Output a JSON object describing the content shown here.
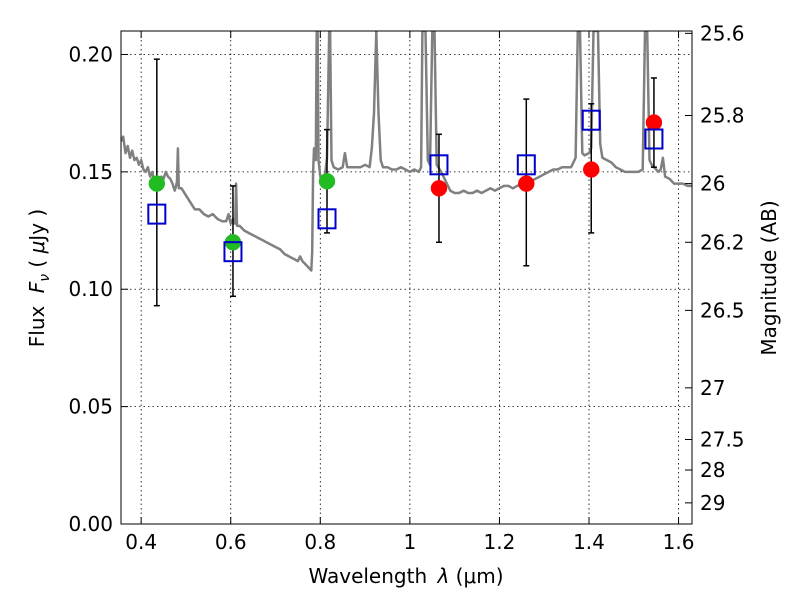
{
  "chart_data": {
    "type": "scatter",
    "title": "",
    "xlabel": "Wavelength  λ (μm)",
    "ylabel": "Flux  F_ν  ( μJy )",
    "ylabel_parts": {
      "prefix": "Flux ",
      "symbol": "F",
      "sub": "ν",
      "unit_open": " ( ",
      "mu": "μ",
      "unit": "Jy )"
    },
    "xlabel_parts": {
      "prefix": "Wavelength ",
      "symbol": "λ",
      "unit": " (μm)"
    },
    "y2label": "Magnitude (AB)",
    "xlim": [
      0.355,
      1.63
    ],
    "ylim": [
      0.0,
      0.21
    ],
    "grid": true,
    "x_ticks": [
      0.4,
      0.6,
      0.8,
      1.0,
      1.2,
      1.4,
      1.6
    ],
    "x_tick_labels": [
      "0.4",
      "0.6",
      "0.8",
      "1",
      "1.2",
      "1.4",
      "1.6"
    ],
    "y_ticks": [
      0.0,
      0.05,
      0.1,
      0.15,
      0.2
    ],
    "y_tick_labels": [
      "0.00",
      "0.05",
      "0.10",
      "0.15",
      "0.20"
    ],
    "y2_ticks": [
      {
        "label": "25.6",
        "flux": 0.209
      },
      {
        "label": "25.8",
        "flux": 0.174
      },
      {
        "label": "26",
        "flux": 0.145
      },
      {
        "label": "26.2",
        "flux": 0.12
      },
      {
        "label": "26.5",
        "flux": 0.091
      },
      {
        "label": "27",
        "flux": 0.058
      },
      {
        "label": "27.5",
        "flux": 0.036
      },
      {
        "label": "28",
        "flux": 0.023
      },
      {
        "label": "29",
        "flux": 0.009
      }
    ],
    "series": [
      {
        "kind": "model_sed",
        "color": "#808080",
        "points": [
          [
            0.355,
            0.163
          ],
          [
            0.36,
            0.165
          ],
          [
            0.365,
            0.158
          ],
          [
            0.37,
            0.161
          ],
          [
            0.375,
            0.156
          ],
          [
            0.38,
            0.159
          ],
          [
            0.385,
            0.155
          ],
          [
            0.39,
            0.156
          ],
          [
            0.395,
            0.153
          ],
          [
            0.4,
            0.155
          ],
          [
            0.405,
            0.151
          ],
          [
            0.41,
            0.15
          ],
          [
            0.415,
            0.152
          ],
          [
            0.42,
            0.148
          ],
          [
            0.425,
            0.15
          ],
          [
            0.43,
            0.145
          ],
          [
            0.435,
            0.146
          ],
          [
            0.44,
            0.145
          ],
          [
            0.445,
            0.148
          ],
          [
            0.45,
            0.147
          ],
          [
            0.455,
            0.15
          ],
          [
            0.46,
            0.148
          ],
          [
            0.465,
            0.147
          ],
          [
            0.47,
            0.145
          ],
          [
            0.475,
            0.142
          ],
          [
            0.478,
            0.144
          ],
          [
            0.48,
            0.146
          ],
          [
            0.482,
            0.16
          ],
          [
            0.484,
            0.143
          ],
          [
            0.49,
            0.143
          ],
          [
            0.5,
            0.14
          ],
          [
            0.51,
            0.137
          ],
          [
            0.52,
            0.134
          ],
          [
            0.53,
            0.134
          ],
          [
            0.54,
            0.132
          ],
          [
            0.55,
            0.131
          ],
          [
            0.56,
            0.132
          ],
          [
            0.57,
            0.13
          ],
          [
            0.58,
            0.129
          ],
          [
            0.59,
            0.129
          ],
          [
            0.595,
            0.132
          ],
          [
            0.6,
            0.128
          ],
          [
            0.605,
            0.13
          ],
          [
            0.608,
            0.128
          ],
          [
            0.61,
            0.128
          ],
          [
            0.612,
            0.145
          ],
          [
            0.614,
            0.127
          ],
          [
            0.62,
            0.127
          ],
          [
            0.63,
            0.125
          ],
          [
            0.64,
            0.124
          ],
          [
            0.65,
            0.123
          ],
          [
            0.66,
            0.122
          ],
          [
            0.67,
            0.121
          ],
          [
            0.68,
            0.12
          ],
          [
            0.69,
            0.119
          ],
          [
            0.7,
            0.118
          ],
          [
            0.71,
            0.117
          ],
          [
            0.72,
            0.115
          ],
          [
            0.73,
            0.114
          ],
          [
            0.74,
            0.113
          ],
          [
            0.75,
            0.112
          ],
          [
            0.755,
            0.114
          ],
          [
            0.76,
            0.112
          ],
          [
            0.765,
            0.111
          ],
          [
            0.77,
            0.11
          ],
          [
            0.775,
            0.109
          ],
          [
            0.78,
            0.108
          ],
          [
            0.782,
            0.116
          ],
          [
            0.784,
            0.15
          ],
          [
            0.786,
            0.16
          ],
          [
            0.79,
            0.155
          ],
          [
            0.792,
            0.21
          ],
          [
            0.794,
            0.21
          ],
          [
            0.796,
            0.155
          ],
          [
            0.8,
            0.148
          ],
          [
            0.81,
            0.148
          ],
          [
            0.815,
            0.156
          ],
          [
            0.82,
            0.21
          ],
          [
            0.822,
            0.21
          ],
          [
            0.825,
            0.155
          ],
          [
            0.83,
            0.152
          ],
          [
            0.84,
            0.151
          ],
          [
            0.85,
            0.152
          ],
          [
            0.855,
            0.158
          ],
          [
            0.86,
            0.152
          ],
          [
            0.87,
            0.152
          ],
          [
            0.88,
            0.152
          ],
          [
            0.89,
            0.152
          ],
          [
            0.9,
            0.153
          ],
          [
            0.91,
            0.152
          ],
          [
            0.915,
            0.16
          ],
          [
            0.92,
            0.175
          ],
          [
            0.925,
            0.21
          ],
          [
            0.93,
            0.175
          ],
          [
            0.935,
            0.155
          ],
          [
            0.94,
            0.152
          ],
          [
            0.95,
            0.152
          ],
          [
            0.96,
            0.151
          ],
          [
            0.97,
            0.151
          ],
          [
            0.98,
            0.152
          ],
          [
            0.99,
            0.151
          ],
          [
            1.0,
            0.15
          ],
          [
            1.01,
            0.151
          ],
          [
            1.02,
            0.15
          ],
          [
            1.025,
            0.152
          ],
          [
            1.028,
            0.21
          ],
          [
            1.032,
            0.21
          ],
          [
            1.035,
            0.21
          ],
          [
            1.04,
            0.155
          ],
          [
            1.045,
            0.153
          ],
          [
            1.05,
            0.21
          ],
          [
            1.055,
            0.21
          ],
          [
            1.06,
            0.153
          ],
          [
            1.07,
            0.15
          ],
          [
            1.08,
            0.146
          ],
          [
            1.09,
            0.142
          ],
          [
            1.1,
            0.141
          ],
          [
            1.11,
            0.141
          ],
          [
            1.12,
            0.142
          ],
          [
            1.13,
            0.141
          ],
          [
            1.14,
            0.141
          ],
          [
            1.15,
            0.142
          ],
          [
            1.16,
            0.141
          ],
          [
            1.17,
            0.142
          ],
          [
            1.18,
            0.143
          ],
          [
            1.19,
            0.142
          ],
          [
            1.2,
            0.143
          ],
          [
            1.21,
            0.144
          ],
          [
            1.22,
            0.144
          ],
          [
            1.23,
            0.143
          ],
          [
            1.24,
            0.144
          ],
          [
            1.25,
            0.145
          ],
          [
            1.26,
            0.147
          ],
          [
            1.27,
            0.146
          ],
          [
            1.28,
            0.147
          ],
          [
            1.29,
            0.148
          ],
          [
            1.3,
            0.149
          ],
          [
            1.31,
            0.15
          ],
          [
            1.32,
            0.151
          ],
          [
            1.33,
            0.151
          ],
          [
            1.34,
            0.152
          ],
          [
            1.35,
            0.152
          ],
          [
            1.36,
            0.152
          ],
          [
            1.37,
            0.156
          ],
          [
            1.375,
            0.21
          ],
          [
            1.38,
            0.21
          ],
          [
            1.385,
            0.158
          ],
          [
            1.39,
            0.157
          ],
          [
            1.4,
            0.158
          ],
          [
            1.405,
            0.16
          ],
          [
            1.41,
            0.21
          ],
          [
            1.415,
            0.21
          ],
          [
            1.42,
            0.21
          ],
          [
            1.425,
            0.162
          ],
          [
            1.43,
            0.156
          ],
          [
            1.44,
            0.155
          ],
          [
            1.45,
            0.154
          ],
          [
            1.46,
            0.152
          ],
          [
            1.47,
            0.151
          ],
          [
            1.48,
            0.15
          ],
          [
            1.49,
            0.15
          ],
          [
            1.5,
            0.15
          ],
          [
            1.51,
            0.15
          ],
          [
            1.52,
            0.151
          ],
          [
            1.525,
            0.21
          ],
          [
            1.53,
            0.21
          ],
          [
            1.535,
            0.155
          ],
          [
            1.54,
            0.153
          ],
          [
            1.545,
            0.152
          ],
          [
            1.55,
            0.151
          ],
          [
            1.555,
            0.15
          ],
          [
            1.56,
            0.151
          ],
          [
            1.565,
            0.156
          ],
          [
            1.57,
            0.148
          ],
          [
            1.58,
            0.147
          ],
          [
            1.59,
            0.145
          ],
          [
            1.6,
            0.145
          ],
          [
            1.61,
            0.145
          ],
          [
            1.62,
            0.144
          ],
          [
            1.63,
            0.144
          ]
        ]
      },
      {
        "kind": "observed",
        "color": "#22bb22",
        "marker": "circle",
        "points": [
          {
            "x": 0.435,
            "y": 0.145
          },
          {
            "x": 0.605,
            "y": 0.12
          },
          {
            "x": 0.815,
            "y": 0.146
          }
        ]
      },
      {
        "kind": "observed",
        "color": "#ff0000",
        "marker": "circle",
        "points": [
          {
            "x": 1.065,
            "y": 0.143
          },
          {
            "x": 1.26,
            "y": 0.145
          },
          {
            "x": 1.405,
            "y": 0.151
          },
          {
            "x": 1.545,
            "y": 0.171
          }
        ]
      },
      {
        "kind": "model_photometry",
        "color": "#0000cc",
        "marker": "open-square",
        "points": [
          {
            "x": 0.435,
            "y": 0.132
          },
          {
            "x": 0.605,
            "y": 0.116
          },
          {
            "x": 0.815,
            "y": 0.13
          },
          {
            "x": 1.065,
            "y": 0.153
          },
          {
            "x": 1.26,
            "y": 0.153
          },
          {
            "x": 1.405,
            "y": 0.172
          },
          {
            "x": 1.545,
            "y": 0.164
          }
        ]
      }
    ],
    "error_bars": [
      {
        "x": 0.435,
        "low": 0.093,
        "high": 0.198
      },
      {
        "x": 0.605,
        "low": 0.097,
        "high": 0.144
      },
      {
        "x": 0.815,
        "low": 0.124,
        "high": 0.168
      },
      {
        "x": 1.065,
        "low": 0.12,
        "high": 0.166
      },
      {
        "x": 1.26,
        "low": 0.11,
        "high": 0.181
      },
      {
        "x": 1.405,
        "low": 0.124,
        "high": 0.179
      },
      {
        "x": 1.545,
        "low": 0.152,
        "high": 0.19
      }
    ]
  }
}
